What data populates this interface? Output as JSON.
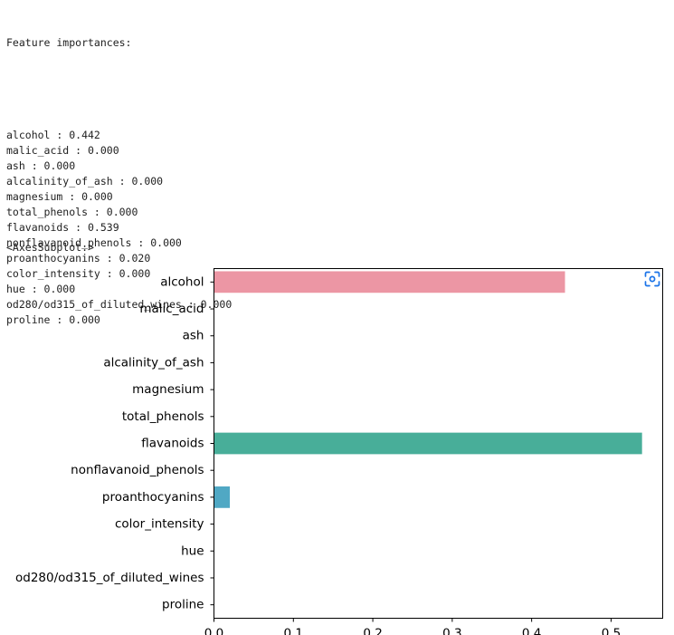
{
  "output": {
    "header": "Feature importances:",
    "lines": [
      "alcohol : 0.442",
      "malic_acid : 0.000",
      "ash : 0.000",
      "alcalinity_of_ash : 0.000",
      "magnesium : 0.000",
      "total_phenols : 0.000",
      "flavanoids : 0.539",
      "nonflavanoid_phenols : 0.000",
      "proanthocyanins : 0.020",
      "color_intensity : 0.000",
      "hue : 0.000",
      "od280/od315_of_diluted_wines : 0.000",
      "proline : 0.000"
    ],
    "repr": "<AxesSubplot:>"
  },
  "toolbar": {
    "expand_icon": "focus-expand-icon",
    "accent": "#1a73e8"
  },
  "chart_data": {
    "type": "bar",
    "orientation": "horizontal",
    "categories": [
      "alcohol",
      "malic_acid",
      "ash",
      "alcalinity_of_ash",
      "magnesium",
      "total_phenols",
      "flavanoids",
      "nonflavanoid_phenols",
      "proanthocyanins",
      "color_intensity",
      "hue",
      "od280/od315_of_diluted_wines",
      "proline"
    ],
    "values": [
      0.442,
      0.0,
      0.0,
      0.0,
      0.0,
      0.0,
      0.539,
      0.0,
      0.02,
      0.0,
      0.0,
      0.0,
      0.0
    ],
    "colors": [
      "#ec96a4",
      "#e59a6a",
      "#c6a343",
      "#a5ab3a",
      "#6db53d",
      "#45b172",
      "#48ae99",
      "#4aaca8",
      "#50a8c4",
      "#6e9fd8",
      "#a593e4",
      "#d386de",
      "#e88ec0"
    ],
    "title": "",
    "xlabel": "",
    "ylabel": "",
    "xlim": [
      0,
      0.565
    ],
    "xticks": [
      0.0,
      0.1,
      0.2,
      0.3,
      0.4,
      0.5
    ],
    "xtick_labels": [
      "0.0",
      "0.1",
      "0.2",
      "0.3",
      "0.4",
      "0.5"
    ],
    "grid": false,
    "legend": "none"
  }
}
